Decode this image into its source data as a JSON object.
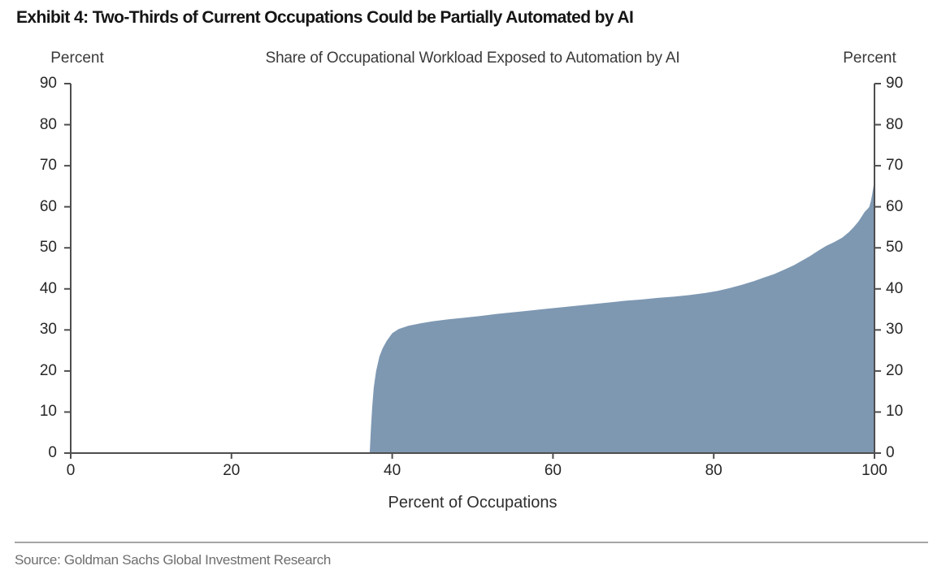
{
  "page": {
    "exhibit_title": "Exhibit 4: Two-Thirds of Current Occupations Could be Partially Automated by AI",
    "source": "Source: Goldman Sachs Global Investment Research"
  },
  "chart_data": {
    "type": "area",
    "title": "Share of Occupational Workload Exposed to Automation by AI",
    "xlabel": "Percent of Occupations",
    "ylabel_left": "Percent",
    "ylabel_right": "Percent",
    "xlim": [
      0,
      100
    ],
    "ylim": [
      0,
      90
    ],
    "x_ticks": [
      0,
      20,
      40,
      60,
      80,
      100
    ],
    "y_ticks": [
      0,
      10,
      20,
      30,
      40,
      50,
      60,
      70,
      80,
      90
    ],
    "grid": false,
    "legend_position": "none",
    "area_fill_color": "#7E98B2",
    "axis_color": "#4E4E4E",
    "series": [
      {
        "name": "Share of occupational workload exposed to automation by AI",
        "points": [
          [
            0,
            0
          ],
          [
            37.2,
            0
          ],
          [
            37.35,
            6
          ],
          [
            37.5,
            11
          ],
          [
            37.7,
            16
          ],
          [
            38,
            20
          ],
          [
            38.4,
            23.5
          ],
          [
            38.8,
            25.5
          ],
          [
            39.3,
            27.3
          ],
          [
            40,
            29.2
          ],
          [
            40.8,
            30.2
          ],
          [
            42,
            31
          ],
          [
            43.5,
            31.6
          ],
          [
            45,
            32.1
          ],
          [
            47,
            32.6
          ],
          [
            49,
            33
          ],
          [
            51,
            33.4
          ],
          [
            53,
            33.9
          ],
          [
            55,
            34.3
          ],
          [
            57,
            34.7
          ],
          [
            59,
            35.1
          ],
          [
            61,
            35.5
          ],
          [
            63,
            35.9
          ],
          [
            65,
            36.3
          ],
          [
            67,
            36.7
          ],
          [
            69,
            37.1
          ],
          [
            71,
            37.4
          ],
          [
            73,
            37.8
          ],
          [
            75,
            38.1
          ],
          [
            77,
            38.5
          ],
          [
            79,
            39
          ],
          [
            80.5,
            39.5
          ],
          [
            82,
            40.2
          ],
          [
            83.5,
            41
          ],
          [
            85,
            41.9
          ],
          [
            86.3,
            42.8
          ],
          [
            87.5,
            43.6
          ],
          [
            88.8,
            44.7
          ],
          [
            90,
            45.8
          ],
          [
            91,
            46.9
          ],
          [
            92,
            48
          ],
          [
            93,
            49.3
          ],
          [
            94,
            50.5
          ],
          [
            95,
            51.4
          ],
          [
            96,
            52.5
          ],
          [
            96.8,
            53.8
          ],
          [
            97.4,
            55
          ],
          [
            98,
            56.4
          ],
          [
            98.4,
            57.6
          ],
          [
            98.8,
            58.8
          ],
          [
            99.1,
            59.4
          ],
          [
            99.35,
            60
          ],
          [
            99.55,
            61.3
          ],
          [
            99.7,
            62.8
          ],
          [
            99.82,
            64.3
          ],
          [
            99.92,
            65.5
          ],
          [
            100,
            66.5
          ]
        ]
      }
    ]
  }
}
